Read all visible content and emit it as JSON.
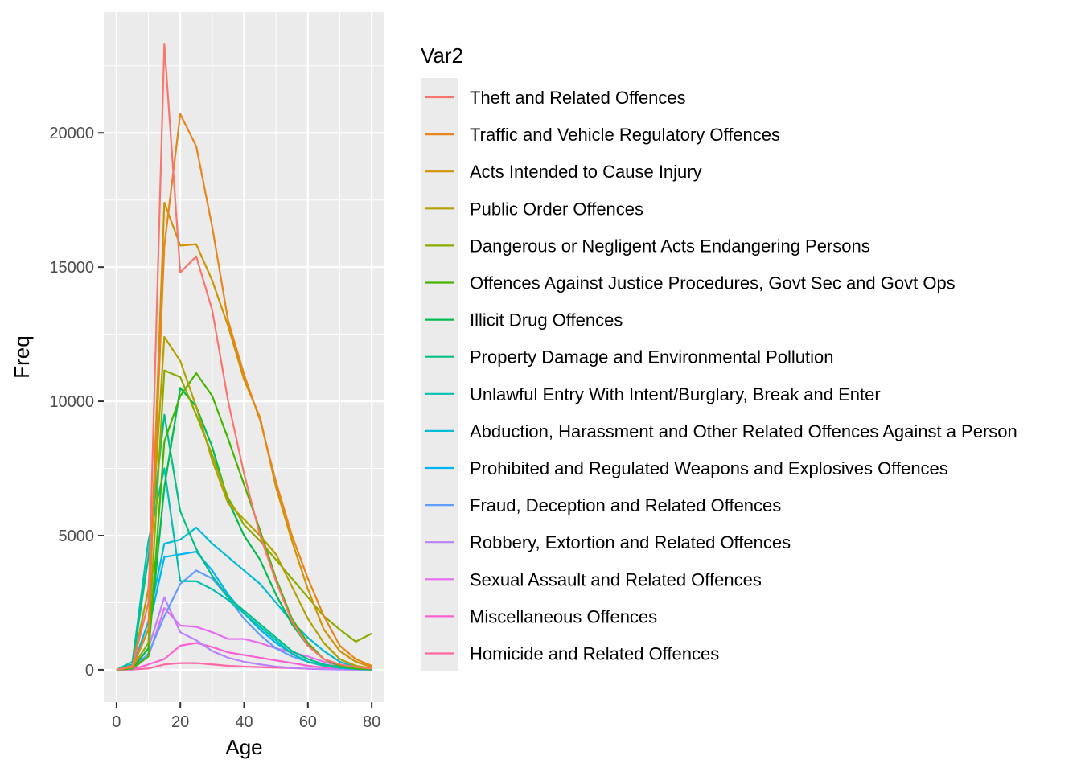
{
  "chart_data": {
    "type": "line",
    "xlabel": "Age",
    "ylabel": "Freq",
    "xlim": [
      -4,
      84
    ],
    "ylim": [
      -1200,
      24500
    ],
    "x_ticks": [
      0,
      20,
      40,
      60,
      80
    ],
    "x_minor_ticks": [
      10,
      30,
      50,
      70
    ],
    "y_ticks": [
      0,
      5000,
      10000,
      15000,
      20000
    ],
    "y_minor_ticks": [
      2500,
      7500,
      12500,
      17500,
      22500
    ],
    "grid": true,
    "legend": {
      "title": "Var2",
      "position": "right"
    },
    "x": [
      0,
      5,
      10,
      15,
      20,
      25,
      30,
      35,
      40,
      45,
      50,
      55,
      60,
      65,
      70,
      75,
      80
    ],
    "series": [
      {
        "name": "Theft and Related Offences",
        "color": "#F8766D",
        "values": [
          0,
          150,
          2500,
          23300,
          14800,
          15400,
          13400,
          10000,
          7300,
          5000,
          3300,
          1800,
          900,
          400,
          200,
          100,
          50
        ]
      },
      {
        "name": "Traffic and Vehicle Regulatory Offences",
        "color": "#E7851E",
        "values": [
          0,
          100,
          1500,
          15800,
          20700,
          19500,
          16500,
          13000,
          11000,
          9300,
          7000,
          5000,
          3400,
          2000,
          900,
          400,
          150
        ]
      },
      {
        "name": "Acts Intended to Cause Injury",
        "color": "#D09400",
        "values": [
          0,
          100,
          1500,
          17400,
          15800,
          15850,
          14500,
          12800,
          10800,
          9400,
          6800,
          4800,
          3000,
          1500,
          700,
          300,
          100
        ]
      },
      {
        "name": "Public Order Offences",
        "color": "#B2A100",
        "values": [
          0,
          150,
          3000,
          12400,
          11500,
          9800,
          7800,
          6200,
          5600,
          5000,
          4300,
          3100,
          1900,
          1000,
          400,
          150,
          50
        ]
      },
      {
        "name": "Dangerous or Negligent Acts Endangering Persons",
        "color": "#89AC00",
        "values": [
          0,
          100,
          1000,
          11150,
          10900,
          9500,
          8000,
          6400,
          5400,
          4800,
          4100,
          3400,
          2700,
          2000,
          1500,
          1050,
          1350
        ]
      },
      {
        "name": "Offences Against Justice Procedures, Govt Sec and Govt Ops",
        "color": "#45B500",
        "values": [
          0,
          50,
          500,
          8500,
          10200,
          11050,
          10200,
          8600,
          6900,
          5200,
          3400,
          1900,
          1000,
          400,
          150,
          50,
          20
        ]
      },
      {
        "name": "Illicit Drug Offences",
        "color": "#00BC51",
        "values": [
          0,
          50,
          800,
          6800,
          10500,
          9800,
          8300,
          6300,
          5000,
          4100,
          2800,
          1700,
          900,
          400,
          150,
          50,
          20
        ]
      },
      {
        "name": "Property Damage and Environmental Pollution",
        "color": "#00C087",
        "values": [
          0,
          200,
          4200,
          9500,
          5900,
          4500,
          3500,
          2700,
          2200,
          1700,
          1200,
          700,
          400,
          200,
          100,
          50,
          20
        ]
      },
      {
        "name": "Unlawful Entry With Intent/Burglary, Break and Enter",
        "color": "#00C0B2",
        "values": [
          0,
          300,
          4800,
          7500,
          3300,
          3300,
          3000,
          2600,
          2100,
          1600,
          1100,
          600,
          300,
          150,
          80,
          30,
          10
        ]
      },
      {
        "name": "Abduction, Harassment and Other Related Offences Against a Person",
        "color": "#00BCD6",
        "values": [
          0,
          100,
          1800,
          4700,
          4850,
          5300,
          4700,
          4200,
          3700,
          3200,
          2500,
          1800,
          1200,
          700,
          300,
          100,
          50
        ]
      },
      {
        "name": "Prohibited and Regulated Weapons and Explosives Offences",
        "color": "#00B3F2",
        "values": [
          0,
          100,
          1500,
          4200,
          4300,
          4400,
          3700,
          2800,
          2100,
          1500,
          1000,
          600,
          300,
          150,
          70,
          30,
          10
        ]
      },
      {
        "name": "Fraud, Deception and Related Offences",
        "color": "#619CFF",
        "values": [
          0,
          50,
          600,
          2000,
          3200,
          3700,
          3400,
          2700,
          1900,
          1300,
          800,
          500,
          300,
          150,
          80,
          40,
          20
        ]
      },
      {
        "name": "Robbery, Extortion and Related Offences",
        "color": "#B983FF",
        "values": [
          0,
          50,
          800,
          2700,
          1400,
          1100,
          700,
          450,
          300,
          200,
          120,
          70,
          40,
          20,
          10,
          5,
          0
        ]
      },
      {
        "name": "Sexual Assault and Related Offences",
        "color": "#E76BF3",
        "values": [
          0,
          30,
          500,
          2300,
          1650,
          1600,
          1400,
          1150,
          1150,
          1000,
          800,
          650,
          500,
          300,
          150,
          80,
          30
        ]
      },
      {
        "name": "Miscellaneous Offences",
        "color": "#FD61D1",
        "values": [
          0,
          20,
          200,
          400,
          900,
          1000,
          850,
          650,
          550,
          450,
          350,
          250,
          150,
          80,
          40,
          20,
          10
        ]
      },
      {
        "name": "Homicide and Related Offences",
        "color": "#FF67A4",
        "values": [
          0,
          10,
          50,
          200,
          250,
          250,
          200,
          150,
          120,
          100,
          80,
          60,
          40,
          25,
          15,
          8,
          5
        ]
      }
    ]
  }
}
